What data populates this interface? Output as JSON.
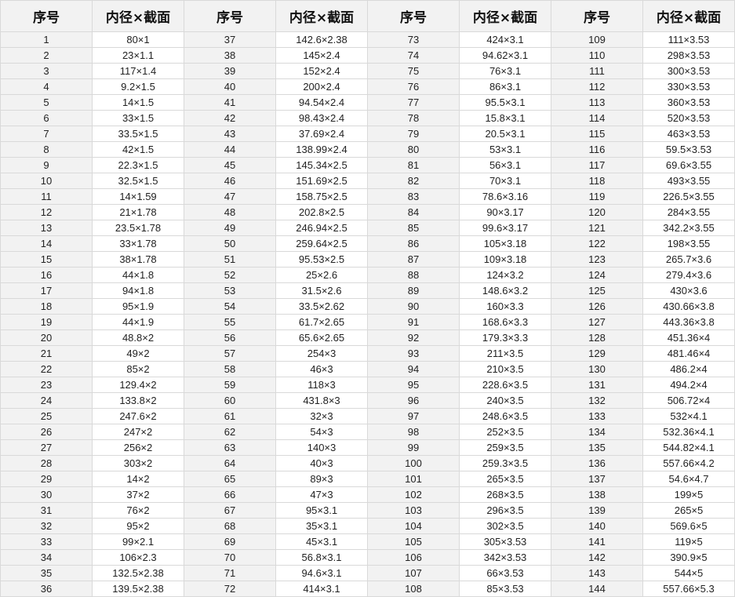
{
  "headers": [
    "序号",
    "内径×截面",
    "序号",
    "内径×截面",
    "序号",
    "内径×截面",
    "序号",
    "内径×截面"
  ],
  "rows": [
    [
      "1",
      "80×1",
      "37",
      "142.6×2.38",
      "73",
      "424×3.1",
      "109",
      "111×3.53"
    ],
    [
      "2",
      "23×1.1",
      "38",
      "145×2.4",
      "74",
      "94.62×3.1",
      "110",
      "298×3.53"
    ],
    [
      "3",
      "117×1.4",
      "39",
      "152×2.4",
      "75",
      "76×3.1",
      "111",
      "300×3.53"
    ],
    [
      "4",
      "9.2×1.5",
      "40",
      "200×2.4",
      "76",
      "86×3.1",
      "112",
      "330×3.53"
    ],
    [
      "5",
      "14×1.5",
      "41",
      "94.54×2.4",
      "77",
      "95.5×3.1",
      "113",
      "360×3.53"
    ],
    [
      "6",
      "33×1.5",
      "42",
      "98.43×2.4",
      "78",
      "15.8×3.1",
      "114",
      "520×3.53"
    ],
    [
      "7",
      "33.5×1.5",
      "43",
      "37.69×2.4",
      "79",
      "20.5×3.1",
      "115",
      "463×3.53"
    ],
    [
      "8",
      "42×1.5",
      "44",
      "138.99×2.4",
      "80",
      "53×3.1",
      "116",
      "59.5×3.53"
    ],
    [
      "9",
      "22.3×1.5",
      "45",
      "145.34×2.5",
      "81",
      "56×3.1",
      "117",
      "69.6×3.55"
    ],
    [
      "10",
      "32.5×1.5",
      "46",
      "151.69×2.5",
      "82",
      "70×3.1",
      "118",
      "493×3.55"
    ],
    [
      "11",
      "14×1.59",
      "47",
      "158.75×2.5",
      "83",
      "78.6×3.16",
      "119",
      "226.5×3.55"
    ],
    [
      "12",
      "21×1.78",
      "48",
      "202.8×2.5",
      "84",
      "90×3.17",
      "120",
      "284×3.55"
    ],
    [
      "13",
      "23.5×1.78",
      "49",
      "246.94×2.5",
      "85",
      "99.6×3.17",
      "121",
      "342.2×3.55"
    ],
    [
      "14",
      "33×1.78",
      "50",
      "259.64×2.5",
      "86",
      "105×3.18",
      "122",
      "198×3.55"
    ],
    [
      "15",
      "38×1.78",
      "51",
      "95.53×2.5",
      "87",
      "109×3.18",
      "123",
      "265.7×3.6"
    ],
    [
      "16",
      "44×1.8",
      "52",
      "25×2.6",
      "88",
      "124×3.2",
      "124",
      "279.4×3.6"
    ],
    [
      "17",
      "94×1.8",
      "53",
      "31.5×2.6",
      "89",
      "148.6×3.2",
      "125",
      "430×3.6"
    ],
    [
      "18",
      "95×1.9",
      "54",
      "33.5×2.62",
      "90",
      "160×3.3",
      "126",
      "430.66×3.8"
    ],
    [
      "19",
      "44×1.9",
      "55",
      "61.7×2.65",
      "91",
      "168.6×3.3",
      "127",
      "443.36×3.8"
    ],
    [
      "20",
      "48.8×2",
      "56",
      "65.6×2.65",
      "92",
      "179.3×3.3",
      "128",
      "451.36×4"
    ],
    [
      "21",
      "49×2",
      "57",
      "254×3",
      "93",
      "211×3.5",
      "129",
      "481.46×4"
    ],
    [
      "22",
      "85×2",
      "58",
      "46×3",
      "94",
      "210×3.5",
      "130",
      "486.2×4"
    ],
    [
      "23",
      "129.4×2",
      "59",
      "118×3",
      "95",
      "228.6×3.5",
      "131",
      "494.2×4"
    ],
    [
      "24",
      "133.8×2",
      "60",
      "431.8×3",
      "96",
      "240×3.5",
      "132",
      "506.72×4"
    ],
    [
      "25",
      "247.6×2",
      "61",
      "32×3",
      "97",
      "248.6×3.5",
      "133",
      "532×4.1"
    ],
    [
      "26",
      "247×2",
      "62",
      "54×3",
      "98",
      "252×3.5",
      "134",
      "532.36×4.1"
    ],
    [
      "27",
      "256×2",
      "63",
      "140×3",
      "99",
      "259×3.5",
      "135",
      "544.82×4.1"
    ],
    [
      "28",
      "303×2",
      "64",
      "40×3",
      "100",
      "259.3×3.5",
      "136",
      "557.66×4.2"
    ],
    [
      "29",
      "14×2",
      "65",
      "89×3",
      "101",
      "265×3.5",
      "137",
      "54.6×4.7"
    ],
    [
      "30",
      "37×2",
      "66",
      "47×3",
      "102",
      "268×3.5",
      "138",
      "199×5"
    ],
    [
      "31",
      "76×2",
      "67",
      "95×3.1",
      "103",
      "296×3.5",
      "139",
      "265×5"
    ],
    [
      "32",
      "95×2",
      "68",
      "35×3.1",
      "104",
      "302×3.5",
      "140",
      "569.6×5"
    ],
    [
      "33",
      "99×2.1",
      "69",
      "45×3.1",
      "105",
      "305×3.53",
      "141",
      "119×5"
    ],
    [
      "34",
      "106×2.3",
      "70",
      "56.8×3.1",
      "106",
      "342×3.53",
      "142",
      "390.9×5"
    ],
    [
      "35",
      "132.5×2.38",
      "71",
      "94.6×3.1",
      "107",
      "66×3.53",
      "143",
      "544×5"
    ],
    [
      "36",
      "139.5×2.38",
      "72",
      "414×3.1",
      "108",
      "85×3.53",
      "144",
      "557.66×5.3"
    ]
  ]
}
